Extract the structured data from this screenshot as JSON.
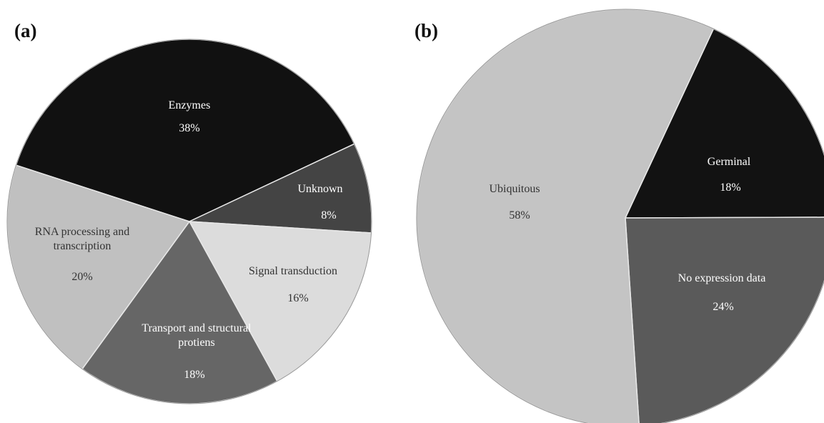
{
  "chart_data": [
    {
      "type": "pie",
      "panel": "(a)",
      "categories": [
        "Enzymes",
        "Unknown",
        "Signal transduction",
        "Transport and structural protiens",
        "RNA processing and transcription"
      ],
      "values": [
        38,
        8,
        16,
        18,
        20
      ],
      "value_labels": [
        "38%",
        "8%",
        "16%",
        "18%",
        "20%"
      ],
      "colors": [
        "#111111",
        "#444444",
        "#dcdcdc",
        "#666666",
        "#c0c0c0"
      ]
    },
    {
      "type": "pie",
      "panel": "(b)",
      "categories": [
        "Germinal",
        "No expression data",
        "Ubiquitous"
      ],
      "values": [
        18,
        24,
        58
      ],
      "value_labels": [
        "18%",
        "24%",
        "58%"
      ],
      "colors": [
        "#121212",
        "#5a5a5a",
        "#c4c4c4"
      ]
    }
  ]
}
